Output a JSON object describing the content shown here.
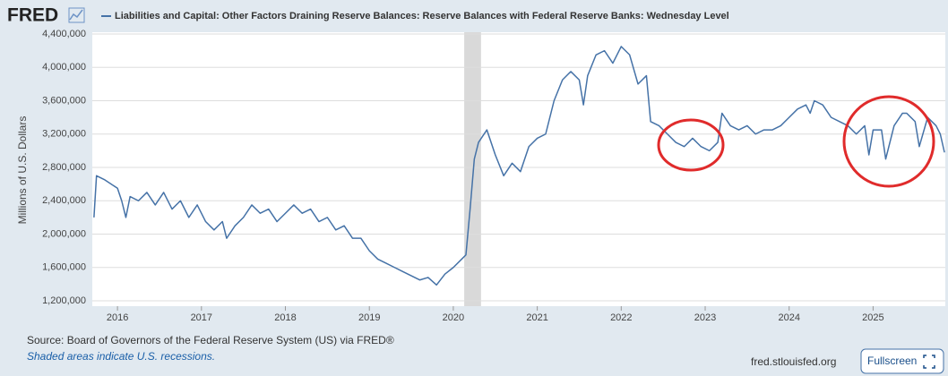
{
  "chart_data": {
    "type": "line",
    "logo": "FRED",
    "ylabel": "Millions of U.S. Dollars",
    "source": "Source: Board of Governors of the Federal Reserve System (US) via FRED®",
    "note": "Shaded areas indicate U.S. recessions.",
    "site": "fred.stlouisfed.org",
    "button": "Fullscreen",
    "grid": true,
    "xlim": [
      2015.7,
      2025.86
    ],
    "xticks": [
      2016,
      2017,
      2018,
      2019,
      2020,
      2021,
      2022,
      2023,
      2024,
      2025
    ],
    "ylim": [
      1200000,
      4400000
    ],
    "yticks": [
      {
        "value": 1200000,
        "label": "1,200,000"
      },
      {
        "value": 1600000,
        "label": "1,600,000"
      },
      {
        "value": 2000000,
        "label": "2,000,000"
      },
      {
        "value": 2400000,
        "label": "2,400,000"
      },
      {
        "value": 2800000,
        "label": "2,800,000"
      },
      {
        "value": 3200000,
        "label": "3,200,000"
      },
      {
        "value": 3600000,
        "label": "3,600,000"
      },
      {
        "value": 4000000,
        "label": "4,000,000"
      },
      {
        "value": 4400000,
        "label": "4,400,000"
      }
    ],
    "recessions": [
      {
        "start": 2020.13,
        "end": 2020.33,
        "color": "#d9d9d9"
      }
    ],
    "x": [
      2015.72,
      2015.75,
      2015.85,
      2016.0,
      2016.05,
      2016.1,
      2016.15,
      2016.25,
      2016.35,
      2016.45,
      2016.55,
      2016.65,
      2016.75,
      2016.85,
      2016.95,
      2017.05,
      2017.15,
      2017.25,
      2017.3,
      2017.4,
      2017.5,
      2017.6,
      2017.7,
      2017.8,
      2017.9,
      2018.0,
      2018.1,
      2018.2,
      2018.3,
      2018.4,
      2018.5,
      2018.6,
      2018.7,
      2018.8,
      2018.9,
      2019.0,
      2019.1,
      2019.2,
      2019.3,
      2019.4,
      2019.5,
      2019.6,
      2019.7,
      2019.8,
      2019.9,
      2020.0,
      2020.1,
      2020.15,
      2020.2,
      2020.25,
      2020.3,
      2020.4,
      2020.5,
      2020.6,
      2020.7,
      2020.8,
      2020.9,
      2021.0,
      2021.1,
      2021.2,
      2021.3,
      2021.4,
      2021.5,
      2021.55,
      2021.6,
      2021.7,
      2021.8,
      2021.9,
      2022.0,
      2022.1,
      2022.2,
      2022.3,
      2022.35,
      2022.45,
      2022.55,
      2022.65,
      2022.75,
      2022.85,
      2022.95,
      2023.05,
      2023.15,
      2023.2,
      2023.3,
      2023.4,
      2023.5,
      2023.6,
      2023.7,
      2023.8,
      2023.9,
      2024.0,
      2024.1,
      2024.2,
      2024.25,
      2024.3,
      2024.4,
      2024.5,
      2024.6,
      2024.7,
      2024.8,
      2024.9,
      2024.95,
      2025.0,
      2025.1,
      2025.15,
      2025.25,
      2025.35,
      2025.4,
      2025.5,
      2025.55,
      2025.65,
      2025.75,
      2025.8,
      2025.85
    ],
    "series": [
      {
        "name": "Liabilities and Capital: Other Factors Draining Reserve Balances: Reserve Balances with Federal Reserve Banks: Wednesday Level",
        "color": "#4572a7",
        "values": [
          2200000,
          2700000,
          2650000,
          2550000,
          2400000,
          2200000,
          2450000,
          2400000,
          2500000,
          2350000,
          2500000,
          2300000,
          2400000,
          2200000,
          2350000,
          2150000,
          2050000,
          2150000,
          1950000,
          2100000,
          2200000,
          2350000,
          2250000,
          2300000,
          2150000,
          2250000,
          2350000,
          2250000,
          2300000,
          2150000,
          2200000,
          2050000,
          2100000,
          1950000,
          1950000,
          1800000,
          1700000,
          1650000,
          1600000,
          1550000,
          1500000,
          1450000,
          1480000,
          1390000,
          1520000,
          1600000,
          1700000,
          1750000,
          2300000,
          2900000,
          3100000,
          3250000,
          2950000,
          2700000,
          2850000,
          2750000,
          3050000,
          3150000,
          3200000,
          3600000,
          3850000,
          3950000,
          3850000,
          3550000,
          3900000,
          4150000,
          4200000,
          4050000,
          4250000,
          4150000,
          3800000,
          3900000,
          3350000,
          3300000,
          3200000,
          3100000,
          3050000,
          3150000,
          3050000,
          3000000,
          3100000,
          3450000,
          3300000,
          3250000,
          3300000,
          3200000,
          3250000,
          3250000,
          3300000,
          3400000,
          3500000,
          3550000,
          3450000,
          3600000,
          3550000,
          3400000,
          3350000,
          3300000,
          3200000,
          3300000,
          2950000,
          3250000,
          3250000,
          2900000,
          3300000,
          3450000,
          3450000,
          3350000,
          3050000,
          3400000,
          3300000,
          3200000,
          2980000
        ]
      }
    ]
  }
}
